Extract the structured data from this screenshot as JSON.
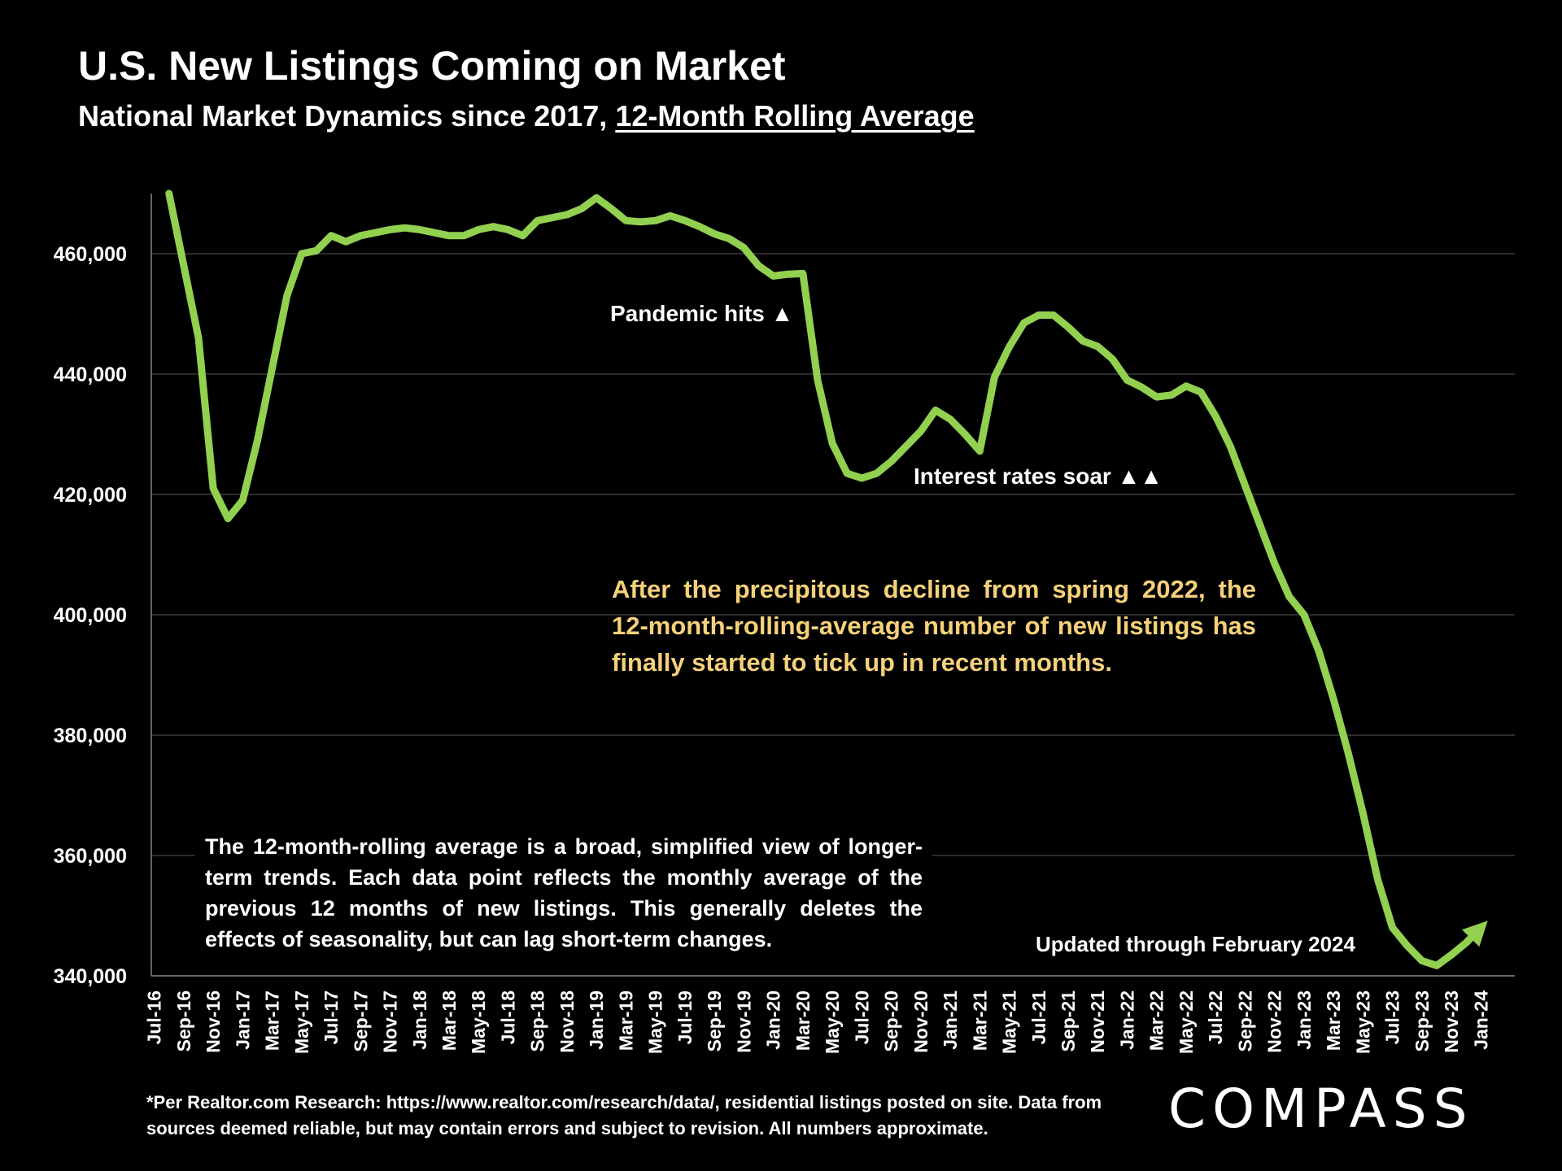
{
  "title": "U.S. New Listings Coming on Market",
  "subtitle_prefix": "National Market Dynamics since 2017, ",
  "subtitle_underlined": "12-Month Rolling Average",
  "annotations": {
    "pandemic": "Pandemic hits ▲",
    "interest": "Interest rates soar ▲▲",
    "updated": "Updated through February 2024",
    "yellow_note": "After the precipitous decline from spring 2022, the 12-month-rolling-average number of new listings has finally started to tick up in recent months.",
    "white_note": "The 12-month-rolling average is a broad, simplified view of longer-term trends. Each data point reflects the monthly average of the previous 12 months of new listings. This generally deletes the effects of seasonality, but can lag short-term changes."
  },
  "footnote": "*Per Realtor.com Research: https://www.realtor.com/research/data/, residential listings posted on site. Data from sources deemed reliable, but may contain errors and subject to revision. All numbers approximate.",
  "logo": "COMPASS",
  "colors": {
    "line": "#92d050",
    "background": "#000000",
    "note": "#f5d17a",
    "grid": "#3a3a3a"
  },
  "chart_data": {
    "type": "line",
    "title": "U.S. New Listings Coming on Market",
    "xlabel": "",
    "ylabel": "",
    "ylim": [
      340000,
      470000
    ],
    "yticks": [
      340000,
      360000,
      380000,
      400000,
      420000,
      440000,
      460000
    ],
    "ytick_labels": [
      "340,000",
      "360,000",
      "380,000",
      "400,000",
      "420,000",
      "440,000",
      "460,000"
    ],
    "xtick_labels": [
      "Jul-16",
      "Sep-16",
      "Nov-16",
      "Jan-17",
      "Mar-17",
      "May-17",
      "Jul-17",
      "Sep-17",
      "Nov-17",
      "Jan-18",
      "Mar-18",
      "May-18",
      "Jul-18",
      "Sep-18",
      "Nov-18",
      "Jan-19",
      "Mar-19",
      "May-19",
      "Jul-19",
      "Sep-19",
      "Nov-19",
      "Jan-20",
      "Mar-20",
      "May-20",
      "Jul-20",
      "Sep-20",
      "Nov-20",
      "Jan-21",
      "Mar-21",
      "May-21",
      "Jul-21",
      "Sep-21",
      "Nov-21",
      "Jan-22",
      "Mar-22",
      "May-22",
      "Jul-22",
      "Sep-22",
      "Nov-22",
      "Jan-23",
      "Mar-23",
      "May-23",
      "Jul-23",
      "Sep-23",
      "Nov-23",
      "Jan-24"
    ],
    "x_start": "Jul-16",
    "series": [
      {
        "name": "New listings (12-month rolling average)",
        "start_index": 1,
        "values": [
          470000,
          458000,
          446000,
          421000,
          416000,
          419000,
          429000,
          441000,
          453000,
          460000,
          460500,
          463000,
          462000,
          463000,
          463500,
          464000,
          464300,
          464000,
          463500,
          463000,
          463000,
          464000,
          464500,
          464000,
          463000,
          465500,
          466000,
          466500,
          467500,
          469300,
          467500,
          465500,
          465300,
          465500,
          466300,
          465500,
          464500,
          463300,
          462500,
          461000,
          458000,
          456300,
          456600,
          456700,
          439000,
          428500,
          423500,
          422700,
          423500,
          425500,
          428000,
          430500,
          434000,
          432500,
          430000,
          427200,
          439500,
          444500,
          448500,
          449800,
          449800,
          447800,
          445500,
          444600,
          442500,
          439000,
          437800,
          436200,
          436500,
          438000,
          437000,
          433000,
          428000,
          421500,
          415000,
          408500,
          403000,
          400000,
          394000,
          386000,
          377000,
          367000,
          356000,
          348000,
          345000,
          342500,
          341700,
          343500,
          345500,
          348000
        ]
      }
    ]
  }
}
